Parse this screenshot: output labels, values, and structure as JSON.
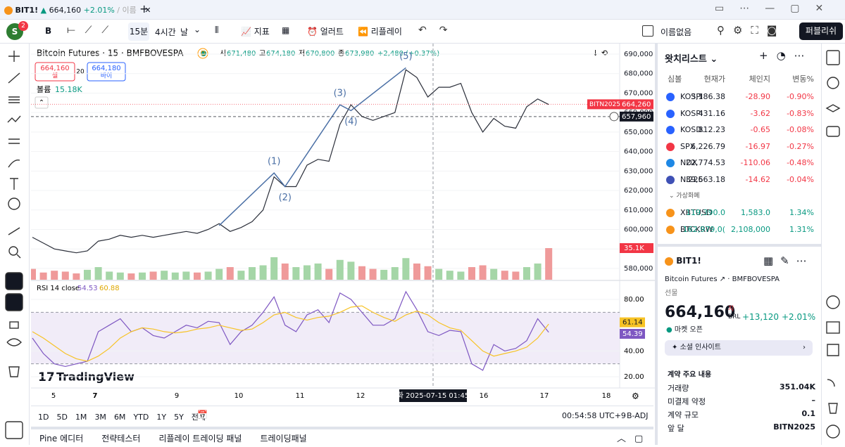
{
  "tab": {
    "symbol": "BIT1!",
    "price": "664,160",
    "change": "+2.01%",
    "extra": "이름"
  },
  "toolbar": {
    "avatar": "S",
    "badge": "2",
    "symbol_short": "B",
    "interval": "15분",
    "interval2": "4시간",
    "interval3": "날",
    "indicators": "지표",
    "alert": "얼러트",
    "replay": "리플레이",
    "layout": "이름없음",
    "publish": "퍼블리쉬"
  },
  "chart_data": [
    {
      "type": "line",
      "title": "Bitcoin Futures · 15 · BMFBOVESPA",
      "exchange_badge": "D",
      "ohlc": [
        {
          "label": "시",
          "value": "671,480"
        },
        {
          "label": "고",
          "value": "674,180"
        },
        {
          "label": "저",
          "value": "670,800"
        },
        {
          "label": "종",
          "value": "673,980"
        }
      ],
      "ohlc_change": "+2,480 (+0.37%)",
      "sell": {
        "price": "664,160",
        "label": "셀"
      },
      "spread": "20",
      "buy": {
        "price": "664,180",
        "label": "바이"
      },
      "color": "#2a2e39",
      "values": [
        596000,
        593000,
        590000,
        589000,
        588000,
        589000,
        594000,
        595000,
        597000,
        596000,
        597000,
        596000,
        597000,
        598000,
        599000,
        598000,
        600000,
        603000,
        599000,
        601000,
        604000,
        610000,
        627000,
        622000,
        622000,
        633000,
        636000,
        635000,
        654000,
        664000,
        658000,
        656000,
        658000,
        660000,
        682000,
        678000,
        668000,
        673000,
        673000,
        675000,
        660000,
        650000,
        657000,
        653000,
        652000,
        663000,
        667000,
        664160
      ],
      "volume": {
        "label": "볼륨",
        "value_label": "15.18K",
        "last_label": "35.1K",
        "color": "#ef9a9a",
        "values": [
          12000,
          8000,
          10000,
          9000,
          7000,
          11000,
          14000,
          9000,
          8000,
          7000,
          8000,
          9000,
          10000,
          8000,
          9000,
          8000,
          9000,
          12000,
          14000,
          10000,
          14000,
          16000,
          25000,
          18000,
          14000,
          16000,
          18000,
          12000,
          22000,
          20000,
          15000,
          12000,
          11000,
          14000,
          24000,
          18000,
          15000,
          12000,
          10000,
          9000,
          14000,
          16000,
          12000,
          10000,
          9000,
          14000,
          18000,
          35100
        ]
      },
      "elliott": {
        "color": "#4a6fa5",
        "origin": 602000,
        "waves": [
          {
            "label": "(1)",
            "value": 629000
          },
          {
            "label": "(2)",
            "value": 622000
          },
          {
            "label": "(3)",
            "value": 664000
          },
          {
            "label": "(4)",
            "value": 661000
          },
          {
            "label": "(5)",
            "value": 683000
          }
        ]
      },
      "ylim": [
        574200,
        694700
      ],
      "yticks": [
        {
          "value": 580000,
          "label": "580,000"
        },
        {
          "value": 590000,
          "label": "590,000"
        },
        {
          "value": 600000,
          "label": "600,000"
        },
        {
          "value": 610000,
          "label": "610,000"
        },
        {
          "value": 620000,
          "label": "620,000"
        },
        {
          "value": 630000,
          "label": "630,000"
        },
        {
          "value": 640000,
          "label": "640,000"
        },
        {
          "value": 650000,
          "label": "650,000"
        },
        {
          "value": 660000,
          "label": "660,000"
        },
        {
          "value": 670000,
          "label": "670,000"
        },
        {
          "value": 680000,
          "label": "680,000"
        },
        {
          "value": 690000,
          "label": "690,000"
        }
      ],
      "price_tags": [
        {
          "name": "BITN2025",
          "value": 664260,
          "label": "664,260",
          "color": "#f23645"
        },
        {
          "value": 657960,
          "label": "657,960",
          "color": "#131722"
        }
      ],
      "time_labels": [
        "5",
        "7",
        "9",
        "10",
        "11",
        "12",
        "16",
        "17",
        "18"
      ],
      "crosshair_label": "화 2025-07-15   01:45",
      "watermark": "TradingView"
    },
    {
      "type": "line",
      "title": "RSI 14 close",
      "series": [
        {
          "color": "#7e57c2",
          "last_label": "54.53",
          "values": [
            50,
            38,
            30,
            28,
            30,
            32,
            55,
            60,
            65,
            55,
            58,
            52,
            50,
            55,
            60,
            58,
            63,
            62,
            45,
            55,
            60,
            70,
            82,
            60,
            55,
            68,
            72,
            62,
            85,
            80,
            70,
            60,
            60,
            65,
            86,
            72,
            55,
            52,
            56,
            55,
            30,
            25,
            45,
            40,
            42,
            48,
            65,
            54.53
          ]
        },
        {
          "color": "#f7c325",
          "last_label": "60.88",
          "values": [
            55,
            50,
            44,
            38,
            34,
            32,
            36,
            42,
            50,
            55,
            58,
            57,
            55,
            54,
            55,
            57,
            58,
            60,
            58,
            56,
            57,
            62,
            68,
            70,
            66,
            64,
            66,
            67,
            70,
            74,
            75,
            70,
            66,
            63,
            68,
            71,
            68,
            62,
            58,
            56,
            48,
            40,
            36,
            38,
            40,
            43,
            50,
            60.88
          ]
        }
      ],
      "band": [
        30,
        70
      ],
      "ylim": [
        15.1,
        94.2
      ],
      "yticks": [
        {
          "value": 20,
          "label": "20.00"
        },
        {
          "value": 40,
          "label": "40.00"
        },
        {
          "value": 80,
          "label": "80.00"
        }
      ],
      "tags": [
        {
          "value": 61.14,
          "color": "#f7c325"
        },
        {
          "value": 54.39,
          "color": "#7e57c2"
        }
      ]
    }
  ],
  "bottom": {
    "ranges": [
      "1D",
      "5D",
      "1M",
      "3M",
      "6M",
      "YTD",
      "1Y",
      "5Y",
      "전체"
    ],
    "clock": "00:54:58 UTC+9",
    "adj": "B-ADJ",
    "tabs": [
      "Pine 에디터",
      "전략테스터",
      "리플레이 트레이딩 패널",
      "트레이딩패널"
    ]
  },
  "watchlist": {
    "title": "왓치리스트",
    "headers": [
      "심볼",
      "현재가",
      "체인지",
      "변동%"
    ],
    "rows": [
      [
        "KOSPI",
        "3,186.38",
        "-28.90",
        "-0.90%"
      ],
      [
        "KOSPI",
        "431.16",
        "-3.62",
        "-0.83%"
      ],
      [
        "KOSD.",
        "812.23",
        "-0.65",
        "-0.08%"
      ],
      [
        "SPX",
        "6,226.79",
        "-16.97",
        "-0.27%"
      ],
      [
        "NDX",
        "22,774.53",
        "-110.06",
        "-0.48%"
      ],
      [
        "NI225",
        "39,663.18",
        "-14.62",
        "-0.04%"
      ]
    ],
    "section": "가상화폐",
    "crypto": [
      [
        "XBTUSD",
        "119,390.0",
        "1,583.0",
        "1.34%"
      ],
      [
        "BTCKRW",
        "162,979,0(",
        "2,108,000",
        "1.31%"
      ]
    ]
  },
  "details": {
    "symbol": "BIT1!",
    "name": "Bitcoin Futures",
    "exchange": "BMFBOVESPA",
    "kind": "선물",
    "price": "664,160",
    "sup": "지",
    "currency": "BRL",
    "change": "+13,120",
    "change_pct": "+2.01%",
    "status": "마켓 오픈",
    "insight": "소셜 인사이트",
    "section": "계약 주요 내용",
    "rows": [
      [
        "거래량",
        "351.04K"
      ],
      [
        "미결제 약정",
        "–"
      ],
      [
        "계약 규모",
        "0.1"
      ],
      [
        "앞 달",
        "BITN2025"
      ]
    ]
  }
}
